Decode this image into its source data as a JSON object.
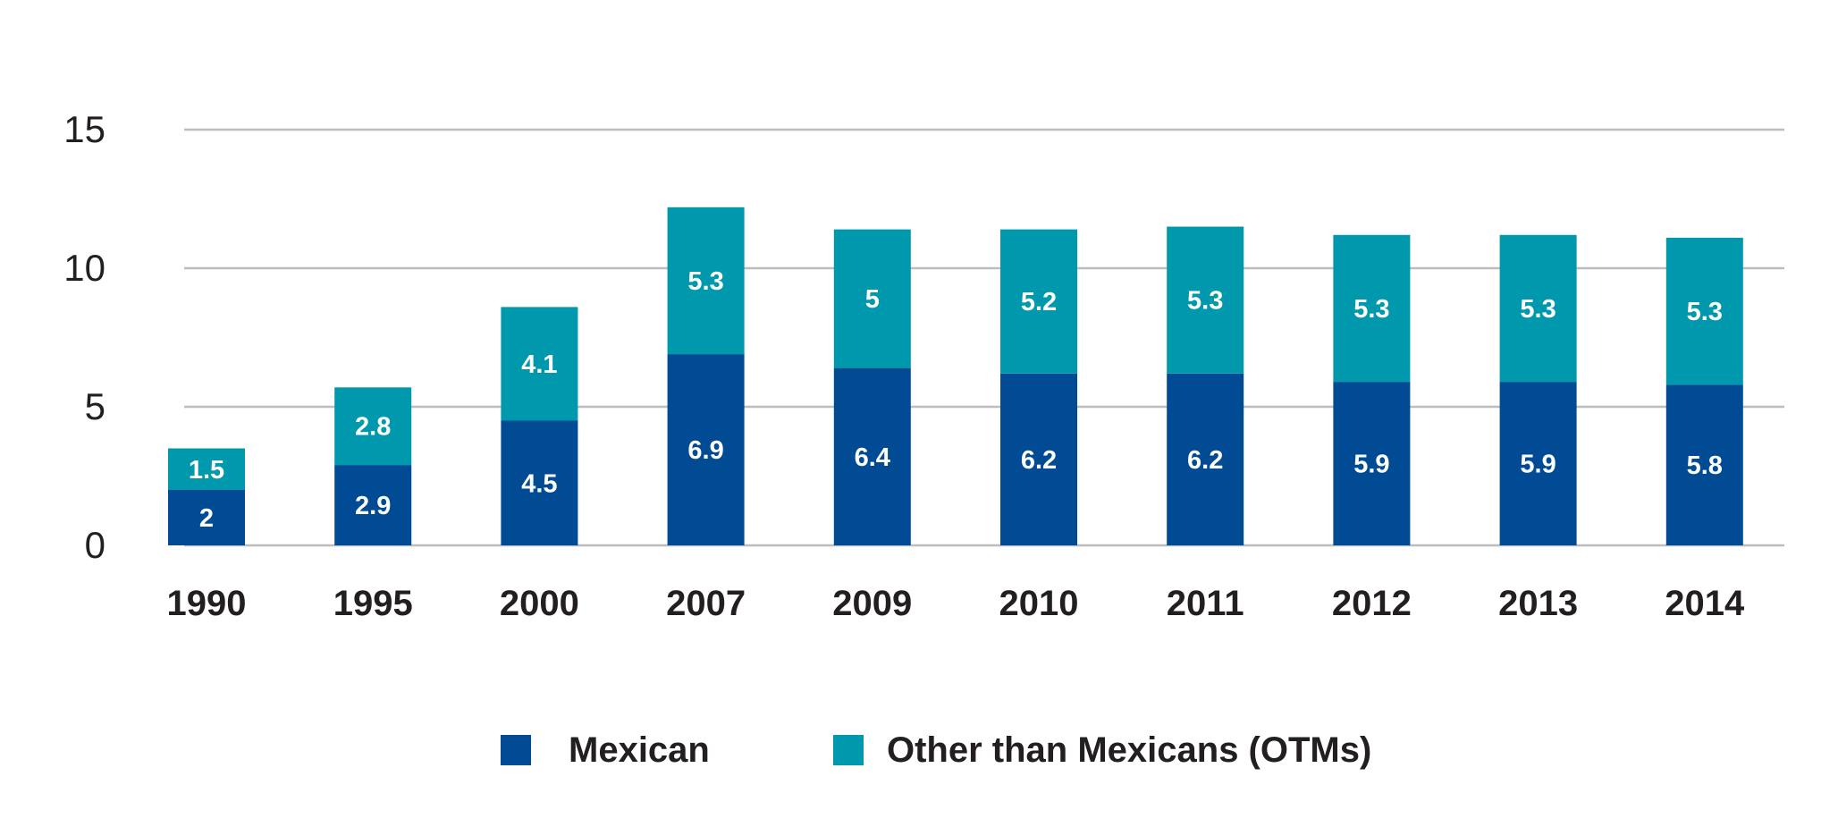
{
  "chart_data": {
    "type": "bar",
    "stacked": true,
    "categories": [
      "1990",
      "1995",
      "2000",
      "2007",
      "2009",
      "2010",
      "2011",
      "2012",
      "2013",
      "2014"
    ],
    "series": [
      {
        "name": "Mexican",
        "color": "#004b93",
        "values": [
          2,
          2.9,
          4.5,
          6.9,
          6.4,
          6.2,
          6.2,
          5.9,
          5.9,
          5.8
        ]
      },
      {
        "name": "Other than Mexicans (OTMs)",
        "color": "#0098ad",
        "values": [
          1.5,
          2.8,
          4.1,
          5.3,
          5,
          5.2,
          5.3,
          5.3,
          5.3,
          5.3
        ]
      }
    ],
    "value_labels": {
      "Mexican": [
        "2",
        "2.9",
        "4.5",
        "6.9",
        "6.4",
        "6.2",
        "6.2",
        "5.9",
        "5.9",
        "5.8"
      ],
      "Other than Mexicans (OTMs)": [
        "1.5",
        "2.8",
        "4.1",
        "5.3",
        "5",
        "5.2",
        "5.3",
        "5.3",
        "5.3",
        "5.3"
      ]
    },
    "ylim": [
      0,
      15
    ],
    "yticks": [
      "0",
      "5",
      "10",
      "15"
    ],
    "grid": true,
    "legend_position": "bottom-center",
    "title": "",
    "xlabel": "",
    "ylabel": ""
  }
}
